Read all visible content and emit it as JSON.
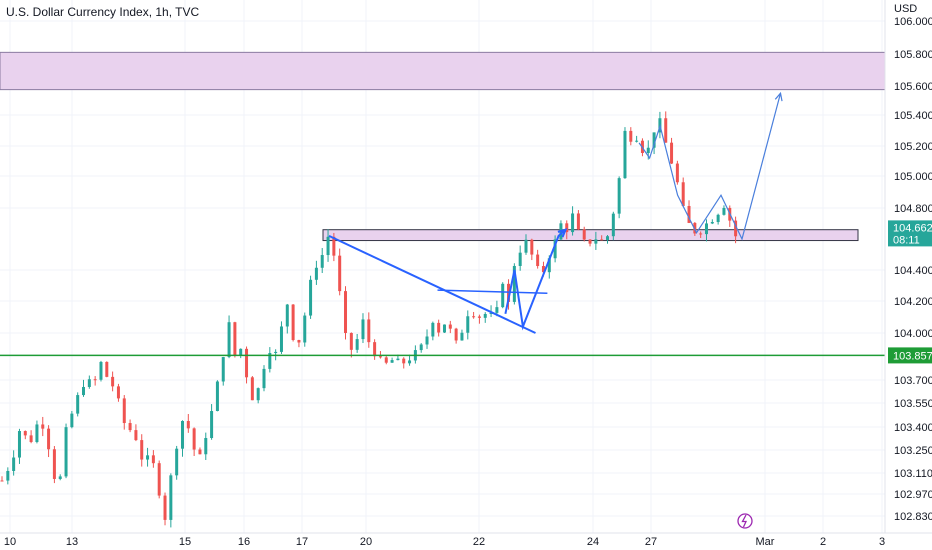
{
  "chart_data": {
    "type": "candlestick",
    "title": "U.S. Dollar Currency Index, 1h, TVC",
    "currency_label": "USD",
    "xlabel": "",
    "ylabel": "",
    "ylim": [
      102.75,
      106.1
    ],
    "grid": true,
    "x_ticks": [
      "10",
      "13",
      "15",
      "16",
      "17",
      "20",
      "22",
      "24",
      "27",
      "Mar",
      "2",
      "3"
    ],
    "y_ticks": [
      "106.000",
      "105.800",
      "105.600",
      "105.400",
      "105.200",
      "105.000",
      "104.800",
      "104.400",
      "104.200",
      "104.000",
      "103.700",
      "103.550",
      "103.400",
      "103.250",
      "103.110",
      "102.970",
      "102.830"
    ],
    "last_price": {
      "value": "104.662",
      "countdown": "08:11"
    },
    "horizontal_line": {
      "value": "103.857",
      "color": "#1e9c36"
    },
    "zones": [
      {
        "from": 105.575,
        "to": 105.81,
        "color": "#e9d2ee"
      },
      {
        "from": 104.59,
        "to": 104.66,
        "color": "#e9d2ee"
      }
    ],
    "price_path": [
      [
        0.0,
        103.06
      ],
      [
        1.5,
        103.2
      ],
      [
        2.5,
        103.38
      ],
      [
        4.0,
        103.3
      ],
      [
        5.5,
        103.47
      ],
      [
        7.0,
        103.22
      ],
      [
        8.0,
        102.95
      ],
      [
        9.0,
        103.35
      ],
      [
        10.5,
        103.55
      ],
      [
        12.0,
        103.72
      ],
      [
        13.0,
        103.64
      ],
      [
        14.0,
        103.82
      ],
      [
        15.0,
        103.72
      ],
      [
        16.0,
        103.65
      ],
      [
        17.5,
        103.42
      ],
      [
        19.0,
        103.35
      ],
      [
        20.0,
        103.2
      ],
      [
        21.5,
        103.18
      ],
      [
        22.5,
        102.98
      ],
      [
        23.3,
        102.82
      ],
      [
        24.0,
        103.05
      ],
      [
        25.0,
        103.3
      ],
      [
        26.0,
        103.48
      ],
      [
        27.0,
        103.34
      ],
      [
        28.0,
        103.15
      ],
      [
        29.0,
        103.33
      ],
      [
        30.0,
        103.5
      ],
      [
        31.0,
        103.72
      ],
      [
        31.8,
        103.92
      ],
      [
        32.5,
        104.06
      ],
      [
        33.3,
        103.85
      ],
      [
        34.0,
        103.92
      ],
      [
        35.0,
        103.72
      ],
      [
        36.0,
        103.55
      ],
      [
        37.0,
        103.7
      ],
      [
        38.0,
        103.92
      ],
      [
        39.0,
        103.85
      ],
      [
        39.8,
        103.98
      ],
      [
        40.5,
        104.25
      ],
      [
        41.3,
        104.05
      ],
      [
        42.0,
        103.88
      ],
      [
        43.0,
        104.05
      ],
      [
        44.0,
        104.3
      ],
      [
        45.0,
        104.45
      ],
      [
        45.8,
        104.5
      ],
      [
        46.6,
        104.62
      ],
      [
        47.2,
        104.55
      ],
      [
        48.0,
        104.35
      ],
      [
        48.7,
        104.05
      ],
      [
        49.5,
        103.88
      ],
      [
        50.5,
        103.92
      ],
      [
        51.5,
        104.08
      ],
      [
        52.5,
        103.93
      ],
      [
        53.5,
        103.86
      ],
      [
        54.5,
        103.78
      ],
      [
        55.5,
        103.83
      ],
      [
        57.0,
        103.8
      ],
      [
        58.5,
        103.85
      ],
      [
        59.5,
        103.88
      ],
      [
        60.5,
        103.95
      ],
      [
        61.5,
        104.1
      ],
      [
        62.0,
        103.98
      ],
      [
        63.0,
        104.08
      ],
      [
        64.0,
        104.0
      ],
      [
        64.6,
        104.17
      ],
      [
        65.0,
        103.82
      ],
      [
        66.0,
        104.1
      ],
      [
        67.0,
        104.15
      ],
      [
        68.0,
        104.1
      ],
      [
        69.0,
        104.12
      ],
      [
        70.0,
        104.1
      ],
      [
        71.0,
        104.15
      ],
      [
        71.6,
        104.36
      ],
      [
        72.2,
        104.12
      ],
      [
        73.0,
        104.42
      ],
      [
        73.8,
        104.5
      ],
      [
        74.5,
        104.6
      ],
      [
        75.3,
        104.55
      ],
      [
        76.0,
        104.45
      ],
      [
        77.0,
        104.35
      ],
      [
        78.0,
        104.48
      ],
      [
        79.0,
        104.58
      ],
      [
        79.8,
        104.7
      ],
      [
        80.5,
        104.62
      ],
      [
        81.2,
        104.8
      ],
      [
        82.0,
        104.67
      ],
      [
        82.8,
        104.6
      ],
      [
        83.5,
        104.55
      ],
      [
        84.5,
        104.62
      ],
      [
        85.5,
        104.58
      ],
      [
        86.5,
        104.62
      ],
      [
        87.2,
        104.75
      ],
      [
        88.0,
        104.9
      ],
      [
        88.8,
        105.3
      ],
      [
        89.6,
        105.25
      ],
      [
        90.5,
        105.28
      ],
      [
        91.3,
        105.2
      ],
      [
        92.0,
        105.12
      ],
      [
        93.0,
        105.3
      ],
      [
        94.0,
        105.35
      ],
      [
        94.8,
        105.22
      ],
      [
        95.5,
        105.12
      ],
      [
        96.5,
        104.95
      ],
      [
        97.2,
        104.8
      ],
      [
        98.0,
        104.7
      ],
      [
        99.0,
        104.65
      ],
      [
        100.0,
        104.66
      ],
      [
        101.0,
        104.72
      ],
      [
        102.0,
        104.75
      ],
      [
        103.0,
        104.84
      ],
      [
        104.0,
        104.72
      ],
      [
        104.8,
        104.62
      ]
    ],
    "drawings": {
      "trendline": {
        "from": [
          47,
          104.62
        ],
        "to": [
          76.5,
          104.0
        ]
      },
      "triangle_top": {
        "from": [
          62.5,
          104.27
        ],
        "to": [
          78.2,
          104.25
        ]
      },
      "zigzag_1": [
        [
          72.2,
          104.12
        ],
        [
          73.5,
          104.4
        ],
        [
          74.7,
          104.04
        ],
        [
          79.8,
          104.62
        ],
        [
          80.8,
          104.66
        ]
      ],
      "zigzag_2": [
        [
          91.3,
          105.22
        ],
        [
          92.8,
          105.12
        ],
        [
          94.3,
          105.33
        ],
        [
          96.8,
          104.88
        ],
        [
          99.5,
          104.64
        ],
        [
          103.0,
          104.88
        ],
        [
          106.0,
          104.6
        ],
        [
          111.5,
          105.55
        ]
      ]
    }
  }
}
